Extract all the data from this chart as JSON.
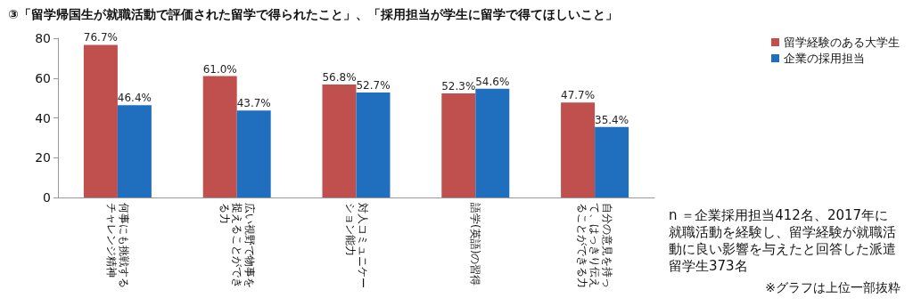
{
  "chart_data": {
    "type": "bar",
    "title": "③「留学帰国生が就職活動で評価された留学で得られたこと」、「採用担当が学生に留学で得てほしいこと」",
    "categories": [
      "何事にも挑戦するチャレンジ精神",
      "広い視野で物事を捉えることができる力",
      "対人コミュニケーション能力",
      "語学(英語)の習得",
      "自分の意見を持って、はっきり伝えることができる力"
    ],
    "series": [
      {
        "name": "留学経験のある大学生",
        "color": "#c0504d",
        "values": [
          76.7,
          61.0,
          56.8,
          52.3,
          47.7
        ],
        "value_labels": [
          "76.7%",
          "61.0%",
          "56.8%",
          "52.3%",
          "47.7%"
        ]
      },
      {
        "name": "企業の採用担当",
        "color": "#1f6fbe",
        "values": [
          46.4,
          43.7,
          52.7,
          54.6,
          35.4
        ],
        "value_labels": [
          "46.4%",
          "43.7%",
          "52.7%",
          "54.6%",
          "35.4%"
        ]
      }
    ],
    "ylim": [
      0,
      80
    ],
    "yticks": [
      0,
      20,
      40,
      60,
      80
    ],
    "grid": false,
    "legend": "top right",
    "annotations": [
      "n ＝企業採用担当412名、2017年に就職活動を経験し、留学経験が就職活動に良い影響を与えたと回答した派遣留学生373名",
      "※グラフは上位一部抜粋"
    ]
  }
}
